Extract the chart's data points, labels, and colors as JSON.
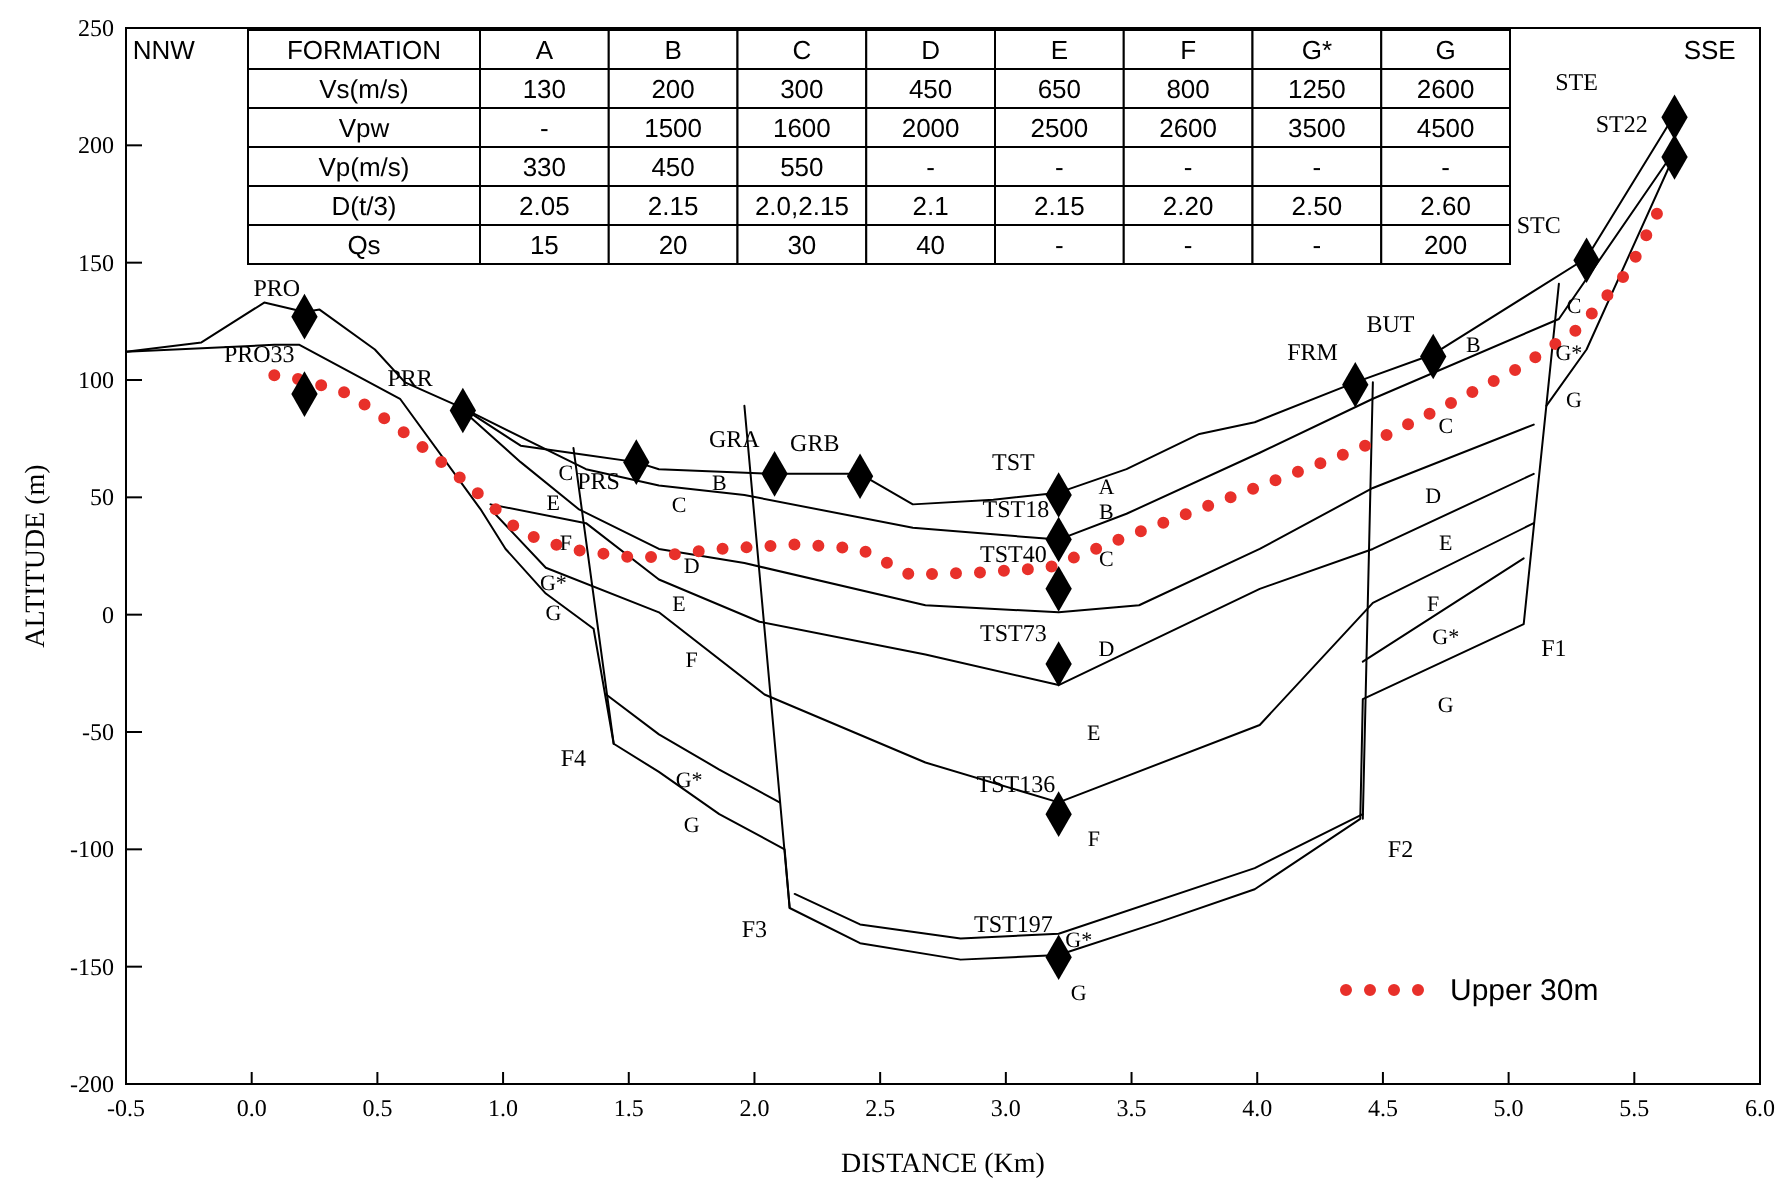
{
  "chart_data": {
    "type": "line",
    "xlabel": "DISTANCE (Km)",
    "ylabel": "ALTITUDE (m)",
    "xlim": [
      -0.5,
      6
    ],
    "ylim": [
      -200,
      250
    ],
    "xticks": [
      -0.5,
      {
        "value": 0,
        "label": "0.0"
      },
      0.5,
      {
        "value": 1,
        "label": "1.0"
      },
      1.5,
      {
        "value": 2,
        "label": "2.0"
      },
      2.5,
      {
        "value": 3,
        "label": "3.0"
      },
      3.5,
      {
        "value": 4,
        "label": "4.0"
      },
      4.5,
      {
        "value": 5,
        "label": "5.0"
      },
      5.5,
      {
        "value": 6,
        "label": "6.0"
      }
    ],
    "yticks": [
      -200,
      -150,
      -100,
      -50,
      0,
      50,
      100,
      150,
      200,
      250
    ],
    "grid": false,
    "legend": "bottom right",
    "series": [
      {
        "color": "#000000",
        "x": [
          -0.5,
          -0.2,
          0.05,
          0.21,
          0.27,
          0.49,
          0.61,
          0.84,
          1.07,
          1.33,
          1.53,
          1.62,
          2.08,
          2.42,
          2.63,
          2.95,
          3.21,
          3.48,
          3.77,
          3.99,
          4.39,
          4.7,
          5.31,
          5.66
        ],
        "values": [
          112,
          116,
          133,
          129,
          130,
          113,
          99,
          88,
          72,
          68,
          65,
          62,
          60,
          60,
          47,
          49,
          52,
          62,
          77,
          82,
          99,
          111,
          152,
          213
        ]
      },
      {
        "color": "#000000",
        "x": [
          -0.5,
          0.09,
          0.19,
          0.59,
          0.91,
          1.01,
          1.17,
          1.36,
          1.44,
          1.62,
          1.86,
          2.12,
          2.14,
          2.42,
          2.82,
          3.21,
          3.61,
          3.99,
          4.41,
          4.42,
          5.06,
          5.15,
          5.31,
          5.66
        ],
        "values": [
          112,
          115,
          115,
          92,
          45,
          28,
          9,
          -6,
          -55,
          -67,
          -85,
          -100,
          -125,
          -140,
          -147,
          -145,
          -131,
          -117,
          -87,
          -36,
          -4,
          89,
          113,
          196
        ]
      },
      {
        "color": "#000000",
        "x": [
          0.84,
          1.33,
          1.62,
          1.96,
          2.63,
          3.21,
          3.48,
          4.01,
          4.46,
          5.2,
          5.63
        ],
        "values": [
          88,
          62,
          55,
          51,
          37,
          32,
          43,
          69,
          92,
          126,
          193
        ]
      },
      {
        "color": "#000000",
        "x": [
          0.85,
          1.07,
          1.3,
          1.62,
          1.96,
          2.68,
          3.21,
          3.53,
          4.01,
          4.46,
          5.1
        ],
        "values": [
          86,
          65,
          45,
          28,
          22,
          4,
          1,
          4,
          28,
          54,
          81
        ]
      },
      {
        "color": "#000000",
        "x": [
          0.95,
          1.33,
          1.62,
          2.02,
          2.68,
          3.21,
          4.01,
          4.46,
          5.1
        ],
        "values": [
          47,
          39,
          15,
          -3,
          -17,
          -30,
          11,
          28,
          60
        ]
      },
      {
        "color": "#000000",
        "x": [
          0.95,
          1.17,
          1.62,
          2.04,
          2.68,
          3.21,
          4.01,
          4.46,
          5.1
        ],
        "values": [
          45,
          20,
          1,
          -34,
          -63,
          -80,
          -47,
          5,
          39
        ]
      },
      {
        "color": "#000000",
        "x": [
          1.41,
          1.62,
          1.86,
          2.1
        ],
        "values": [
          -34,
          -51,
          -66,
          -80
        ]
      },
      {
        "color": "#000000",
        "x": [
          2.16,
          2.42,
          2.82,
          3.21,
          3.99,
          4.42
        ],
        "values": [
          -119,
          -132,
          -138,
          -136,
          -108,
          -85
        ]
      },
      {
        "color": "#000000",
        "x": [
          4.42,
          5.06
        ],
        "values": [
          -20,
          24
        ]
      },
      {
        "color": "#000000",
        "x": [
          1.28,
          1.44
        ],
        "values": [
          71,
          -55
        ]
      },
      {
        "color": "#000000",
        "x": [
          1.96,
          2.14
        ],
        "values": [
          89,
          -125
        ]
      },
      {
        "color": "#000000",
        "x": [
          4.46,
          4.42
        ],
        "values": [
          99,
          -87
        ]
      },
      {
        "color": "#000000",
        "x": [
          5.2,
          5.15
        ],
        "values": [
          141,
          89
        ]
      },
      {
        "name": "Upper 30m",
        "color": "#e8302a",
        "line_style": "dotted",
        "x": [
          0.09,
          0.21,
          0.39,
          0.59,
          0.79,
          0.95,
          1.07,
          1.26,
          1.54,
          1.86,
          2.18,
          2.42,
          2.62,
          2.9,
          3.17,
          3.45,
          3.77,
          4.09,
          4.41,
          4.73,
          5.04,
          5.28,
          5.48,
          5.6
        ],
        "values": [
          102,
          100,
          94,
          79,
          62,
          47,
          35,
          28,
          24,
          28,
          30,
          28,
          17,
          18,
          20,
          32,
          45,
          58,
          71,
          88,
          105,
          122,
          147,
          173
        ]
      },
      {
        "type": "scatter",
        "color": "#000000",
        "marker": "diamond",
        "x": [
          0.21,
          0.21,
          0.84,
          1.53,
          2.08,
          2.42,
          3.21,
          3.21,
          3.21,
          3.21,
          3.21,
          3.21,
          4.39,
          4.7,
          5.31,
          5.66,
          5.66
        ],
        "values": [
          127,
          94,
          87,
          65,
          60,
          59,
          51,
          32,
          11,
          -21,
          -85,
          -146,
          98,
          110,
          151,
          212,
          195
        ]
      }
    ],
    "annotations": [
      "NNW",
      "SSE",
      "PRO",
      "PRO33",
      "PRR",
      "PRS",
      "GRA",
      "GRB",
      "TST",
      "TST18",
      "TST40",
      "TST73",
      "TST136",
      "TST197",
      "FRM",
      "BUT",
      "STC",
      "STE",
      "ST22",
      "F1",
      "F2",
      "F3",
      "F4",
      "C",
      "E",
      "F",
      "G*",
      "G",
      "B",
      "C",
      "D",
      "E",
      "F",
      "G*",
      "G",
      "A",
      "B",
      "C",
      "D",
      "E",
      "F",
      "G*",
      "G",
      "C",
      "B",
      "G*",
      "G",
      "C",
      "D",
      "E",
      "F",
      "G*",
      "G",
      "FORMATION",
      "A",
      "B",
      "C",
      "D",
      "E",
      "F",
      "G*",
      "G",
      "Vs(m/s)",
      "130",
      "200",
      "300",
      "450",
      "650",
      "800",
      "1250",
      "2600",
      "Vpw",
      "-",
      "1500",
      "1600",
      "2000",
      "2500",
      "2600",
      "3500",
      "4500",
      "Vp(m/s)",
      "330",
      "450",
      "550",
      "-",
      "-",
      "-",
      "-",
      "-",
      "D(t/3)",
      "2.05",
      "2.15",
      "2.0,2.15",
      "2.1",
      "2.15",
      "2.20",
      "2.50",
      "2.60",
      "Qs",
      "15",
      "20",
      "30",
      "40",
      "-",
      "-",
      "-",
      "200"
    ]
  }
}
